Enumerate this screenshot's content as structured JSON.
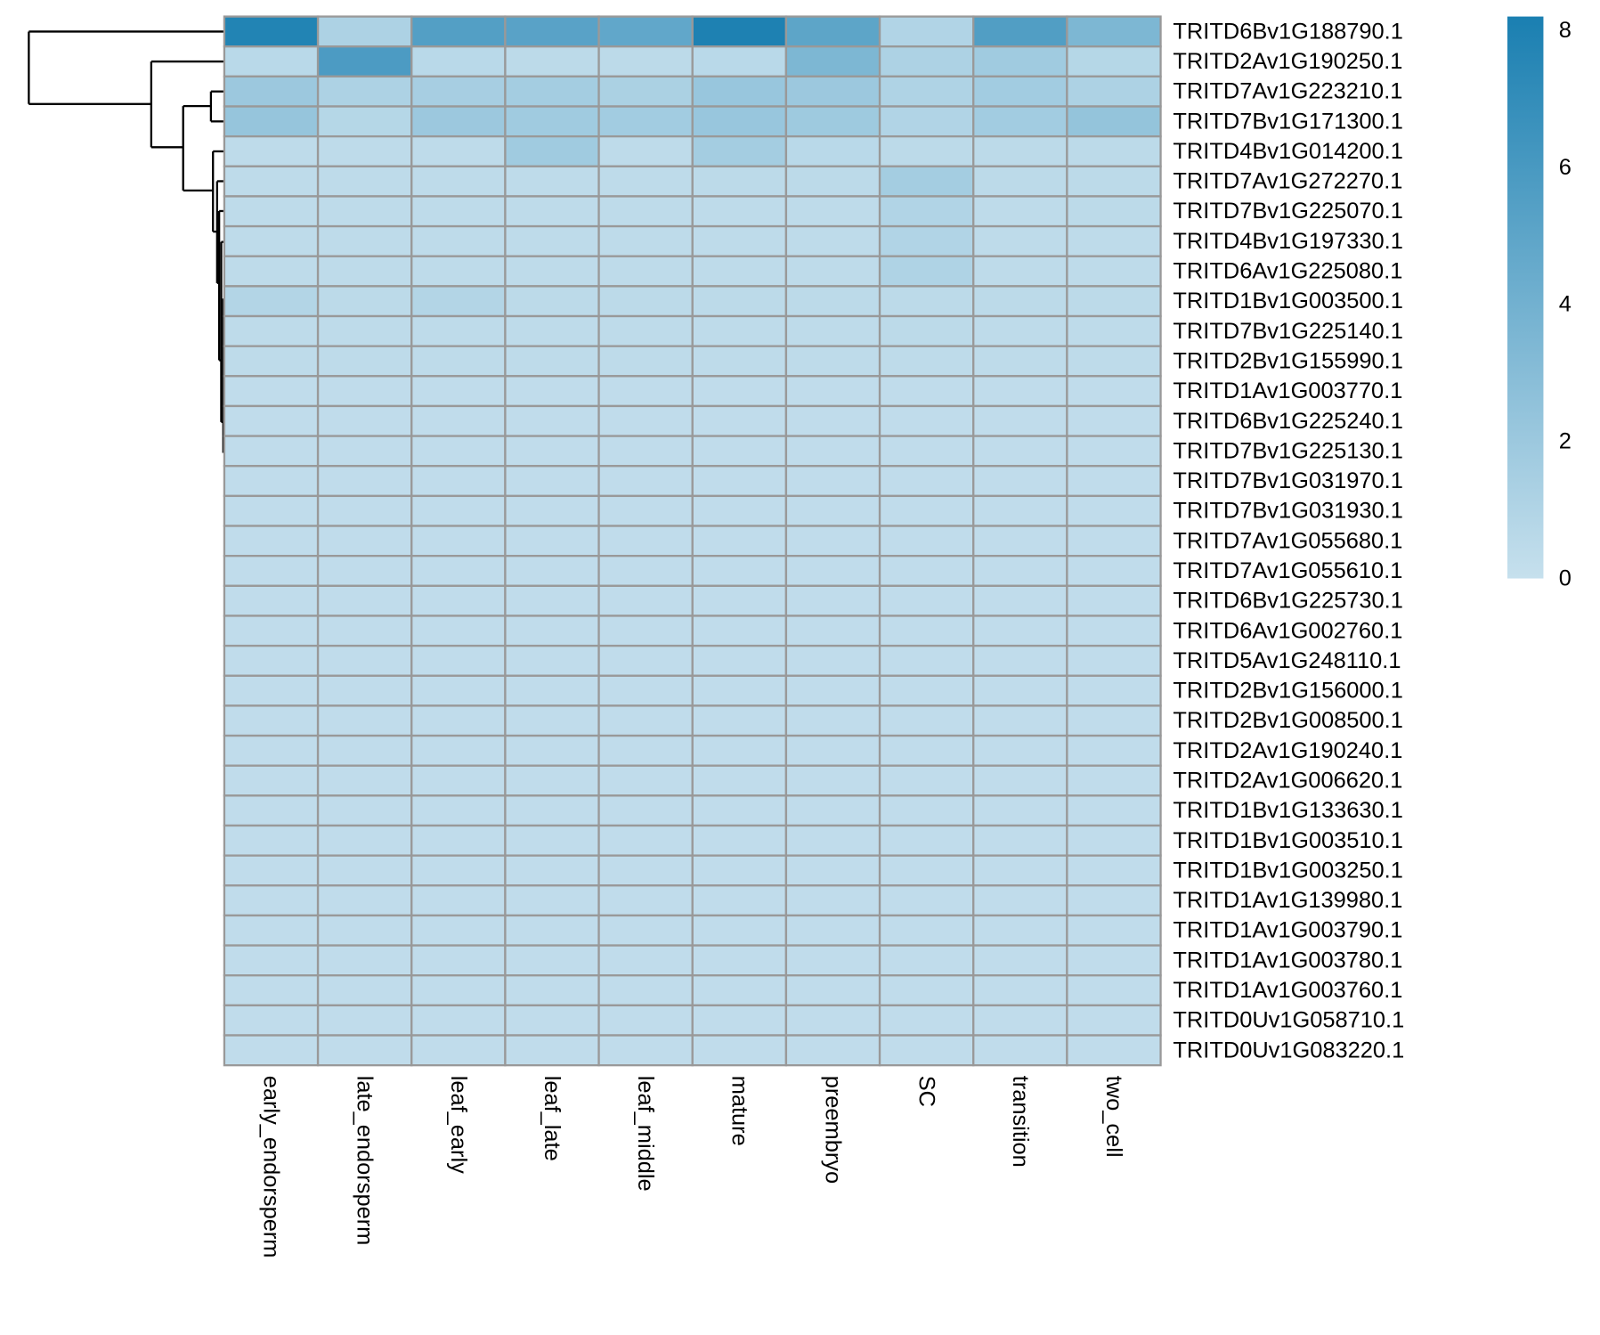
{
  "chart_data": {
    "type": "heatmap",
    "categories": [
      "early_endorsperm",
      "late_endorsperm",
      "leaf_early",
      "leaf_late",
      "leaf_middle",
      "mature",
      "preembryo",
      "SC",
      "transition",
      "two_cell"
    ],
    "rows": [
      "TRITD6Bv1G188790.1",
      "TRITD2Av1G190250.1",
      "TRITD7Av1G223210.1",
      "TRITD7Bv1G171300.1",
      "TRITD4Bv1G014200.1",
      "TRITD7Av1G272270.1",
      "TRITD7Bv1G225070.1",
      "TRITD4Bv1G197330.1",
      "TRITD6Av1G225080.1",
      "TRITD1Bv1G003500.1",
      "TRITD7Bv1G225140.1",
      "TRITD2Bv1G155990.1",
      "TRITD1Av1G003770.1",
      "TRITD6Bv1G225240.1",
      "TRITD7Bv1G225130.1",
      "TRITD7Bv1G031970.1",
      "TRITD7Bv1G031930.1",
      "TRITD7Av1G055680.1",
      "TRITD7Av1G055610.1",
      "TRITD6Bv1G225730.1",
      "TRITD6Av1G002760.1",
      "TRITD5Av1G248110.1",
      "TRITD2Bv1G156000.1",
      "TRITD2Bv1G008500.1",
      "TRITD2Av1G190240.1",
      "TRITD2Av1G006620.1",
      "TRITD1Bv1G133630.1",
      "TRITD1Bv1G003510.1",
      "TRITD1Bv1G003250.1",
      "TRITD1Av1G139980.1",
      "TRITD1Av1G003790.1",
      "TRITD1Av1G003780.1",
      "TRITD1Av1G003760.1",
      "TRITD0Uv1G058710.1",
      "TRITD0Uv1G083220.1"
    ],
    "values": [
      [
        7.8,
        1.2,
        5.5,
        5.2,
        4.8,
        8.0,
        5.0,
        1.0,
        5.6,
        3.5
      ],
      [
        0.6,
        5.8,
        0.6,
        0.5,
        0.5,
        0.6,
        3.5,
        1.2,
        1.8,
        0.8
      ],
      [
        2.0,
        1.2,
        1.5,
        1.6,
        1.3,
        2.2,
        2.0,
        1.1,
        1.7,
        1.2
      ],
      [
        2.3,
        0.8,
        2.0,
        1.8,
        1.7,
        2.2,
        1.9,
        1.0,
        1.7,
        2.4
      ],
      [
        0.4,
        0.4,
        0.4,
        1.8,
        0.4,
        1.6,
        0.6,
        0.5,
        0.5,
        0.5
      ],
      [
        0.4,
        0.4,
        0.4,
        0.4,
        0.4,
        0.5,
        0.5,
        1.6,
        0.5,
        0.5
      ],
      [
        0.4,
        0.4,
        0.4,
        0.4,
        0.4,
        0.4,
        0.4,
        1.0,
        0.4,
        0.5
      ],
      [
        0.4,
        0.4,
        0.4,
        0.4,
        0.4,
        0.4,
        0.4,
        1.0,
        0.4,
        0.4
      ],
      [
        0.4,
        0.4,
        0.4,
        0.4,
        0.4,
        0.4,
        0.4,
        1.1,
        0.4,
        0.4
      ],
      [
        0.9,
        0.5,
        0.9,
        0.5,
        0.5,
        0.5,
        0.5,
        0.5,
        0.5,
        0.5
      ],
      [
        0.4,
        0.4,
        0.4,
        0.4,
        0.4,
        0.4,
        0.4,
        0.5,
        0.4,
        0.4
      ],
      [
        0.4,
        0.4,
        0.4,
        0.4,
        0.4,
        0.4,
        0.4,
        0.4,
        0.4,
        0.4
      ],
      [
        0.3,
        0.3,
        0.3,
        0.3,
        0.3,
        0.3,
        0.3,
        0.3,
        0.3,
        0.3
      ],
      [
        0.3,
        0.3,
        0.3,
        0.3,
        0.3,
        0.3,
        0.3,
        0.3,
        0.3,
        0.3
      ],
      [
        0.3,
        0.3,
        0.3,
        0.3,
        0.3,
        0.3,
        0.3,
        0.3,
        0.3,
        0.3
      ],
      [
        0.3,
        0.3,
        0.3,
        0.3,
        0.3,
        0.3,
        0.3,
        0.3,
        0.3,
        0.3
      ],
      [
        0.3,
        0.3,
        0.3,
        0.3,
        0.3,
        0.3,
        0.3,
        0.3,
        0.3,
        0.3
      ],
      [
        0.3,
        0.3,
        0.3,
        0.3,
        0.3,
        0.3,
        0.3,
        0.3,
        0.3,
        0.3
      ],
      [
        0.3,
        0.3,
        0.3,
        0.3,
        0.3,
        0.3,
        0.3,
        0.3,
        0.3,
        0.3
      ],
      [
        0.3,
        0.3,
        0.3,
        0.3,
        0.3,
        0.3,
        0.3,
        0.3,
        0.3,
        0.3
      ],
      [
        0.3,
        0.3,
        0.3,
        0.3,
        0.3,
        0.3,
        0.3,
        0.3,
        0.3,
        0.3
      ],
      [
        0.3,
        0.3,
        0.3,
        0.3,
        0.3,
        0.3,
        0.3,
        0.3,
        0.3,
        0.3
      ],
      [
        0.3,
        0.3,
        0.3,
        0.3,
        0.3,
        0.3,
        0.3,
        0.3,
        0.3,
        0.3
      ],
      [
        0.3,
        0.3,
        0.3,
        0.3,
        0.3,
        0.3,
        0.3,
        0.3,
        0.3,
        0.3
      ],
      [
        0.3,
        0.3,
        0.3,
        0.3,
        0.3,
        0.3,
        0.3,
        0.3,
        0.3,
        0.3
      ],
      [
        0.3,
        0.3,
        0.3,
        0.3,
        0.3,
        0.3,
        0.3,
        0.3,
        0.3,
        0.3
      ],
      [
        0.3,
        0.3,
        0.3,
        0.3,
        0.3,
        0.3,
        0.3,
        0.3,
        0.3,
        0.3
      ],
      [
        0.3,
        0.3,
        0.3,
        0.3,
        0.3,
        0.3,
        0.3,
        0.3,
        0.3,
        0.3
      ],
      [
        0.3,
        0.3,
        0.3,
        0.3,
        0.3,
        0.3,
        0.3,
        0.3,
        0.3,
        0.3
      ],
      [
        0.3,
        0.3,
        0.3,
        0.3,
        0.3,
        0.3,
        0.3,
        0.3,
        0.3,
        0.3
      ],
      [
        0.3,
        0.3,
        0.3,
        0.3,
        0.3,
        0.3,
        0.3,
        0.3,
        0.3,
        0.3
      ],
      [
        0.3,
        0.3,
        0.3,
        0.3,
        0.3,
        0.3,
        0.3,
        0.3,
        0.3,
        0.3
      ],
      [
        0.3,
        0.3,
        0.3,
        0.3,
        0.3,
        0.3,
        0.3,
        0.3,
        0.3,
        0.3
      ],
      [
        0.3,
        0.3,
        0.3,
        0.3,
        0.3,
        0.3,
        0.3,
        0.3,
        0.3,
        0.3
      ],
      [
        0.3,
        0.3,
        0.3,
        0.3,
        0.3,
        0.3,
        0.3,
        0.3,
        0.3,
        0.3
      ]
    ],
    "zlim": [
      0,
      8.2
    ],
    "zticks": [
      0,
      2,
      4,
      6,
      8
    ],
    "colormap": [
      "#c6e0ed",
      "#1a7fb1"
    ],
    "cell_border_color": "#999999"
  }
}
